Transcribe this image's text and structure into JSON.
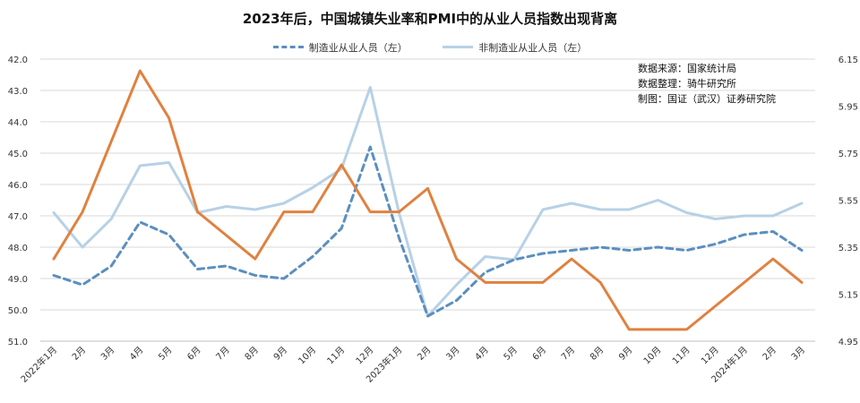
{
  "chart_data": {
    "type": "line",
    "title": "2023年后，中国城镇失业率和PMI中的从业人员指数出现背离",
    "notes": [
      "数据来源：国家统计局",
      "数据整理：骑牛研究所",
      "制图：国证（武汉）证券研究院"
    ],
    "categories": [
      "2022年1月",
      "2月",
      "3月",
      "4月",
      "5月",
      "6月",
      "7月",
      "8月",
      "9月",
      "10月",
      "11月",
      "12月",
      "2023年1月",
      "2月",
      "3月",
      "4月",
      "5月",
      "6月",
      "7月",
      "8月",
      "9月",
      "10月",
      "11月",
      "12月",
      "2024年1月",
      "2月",
      "3月"
    ],
    "left_axis": {
      "min": 42.0,
      "max": 51.0,
      "inverted": true,
      "ticks": [
        "42.0",
        "43.0",
        "44.0",
        "45.0",
        "46.0",
        "47.0",
        "48.0",
        "49.0",
        "50.0",
        "51.0"
      ]
    },
    "right_axis": {
      "min": 4.95,
      "max": 6.15,
      "ticks": [
        "6.15",
        "5.95",
        "5.75",
        "5.55",
        "5.35",
        "5.15",
        "4.95"
      ]
    },
    "grid": "horizontal",
    "legend_position": "top",
    "series": [
      {
        "name": "制造业从业人员（左）",
        "axis": "left",
        "color": "#5b8fc0",
        "style": "dashed",
        "values": [
          48.9,
          49.2,
          48.6,
          47.2,
          47.6,
          48.7,
          48.6,
          48.9,
          49.0,
          48.3,
          47.4,
          44.8,
          47.7,
          50.2,
          49.7,
          48.8,
          48.4,
          48.2,
          48.1,
          48.0,
          48.1,
          48.0,
          48.1,
          47.9,
          47.6,
          47.5,
          48.1
        ]
      },
      {
        "name": "非制造业从业人员（左）",
        "axis": "left",
        "color": "#b7d1e6",
        "style": "solid",
        "values": [
          46.9,
          48.0,
          47.1,
          45.4,
          45.3,
          46.9,
          46.7,
          46.8,
          46.6,
          46.1,
          45.5,
          42.9,
          46.9,
          50.2,
          49.2,
          48.3,
          48.4,
          46.8,
          46.6,
          46.8,
          46.8,
          46.5,
          46.9,
          47.1,
          47.0,
          47.0,
          46.6
        ]
      },
      {
        "name": "",
        "axis": "right",
        "color": "#e0813f",
        "style": "solid",
        "values": [
          5.3,
          5.5,
          5.8,
          6.1,
          5.9,
          5.5,
          5.4,
          5.3,
          5.5,
          5.5,
          5.7,
          5.5,
          5.5,
          5.6,
          5.3,
          5.2,
          5.2,
          5.2,
          5.3,
          5.2,
          5.0,
          5.0,
          5.0,
          5.1,
          5.2,
          5.3,
          5.2
        ]
      }
    ]
  }
}
